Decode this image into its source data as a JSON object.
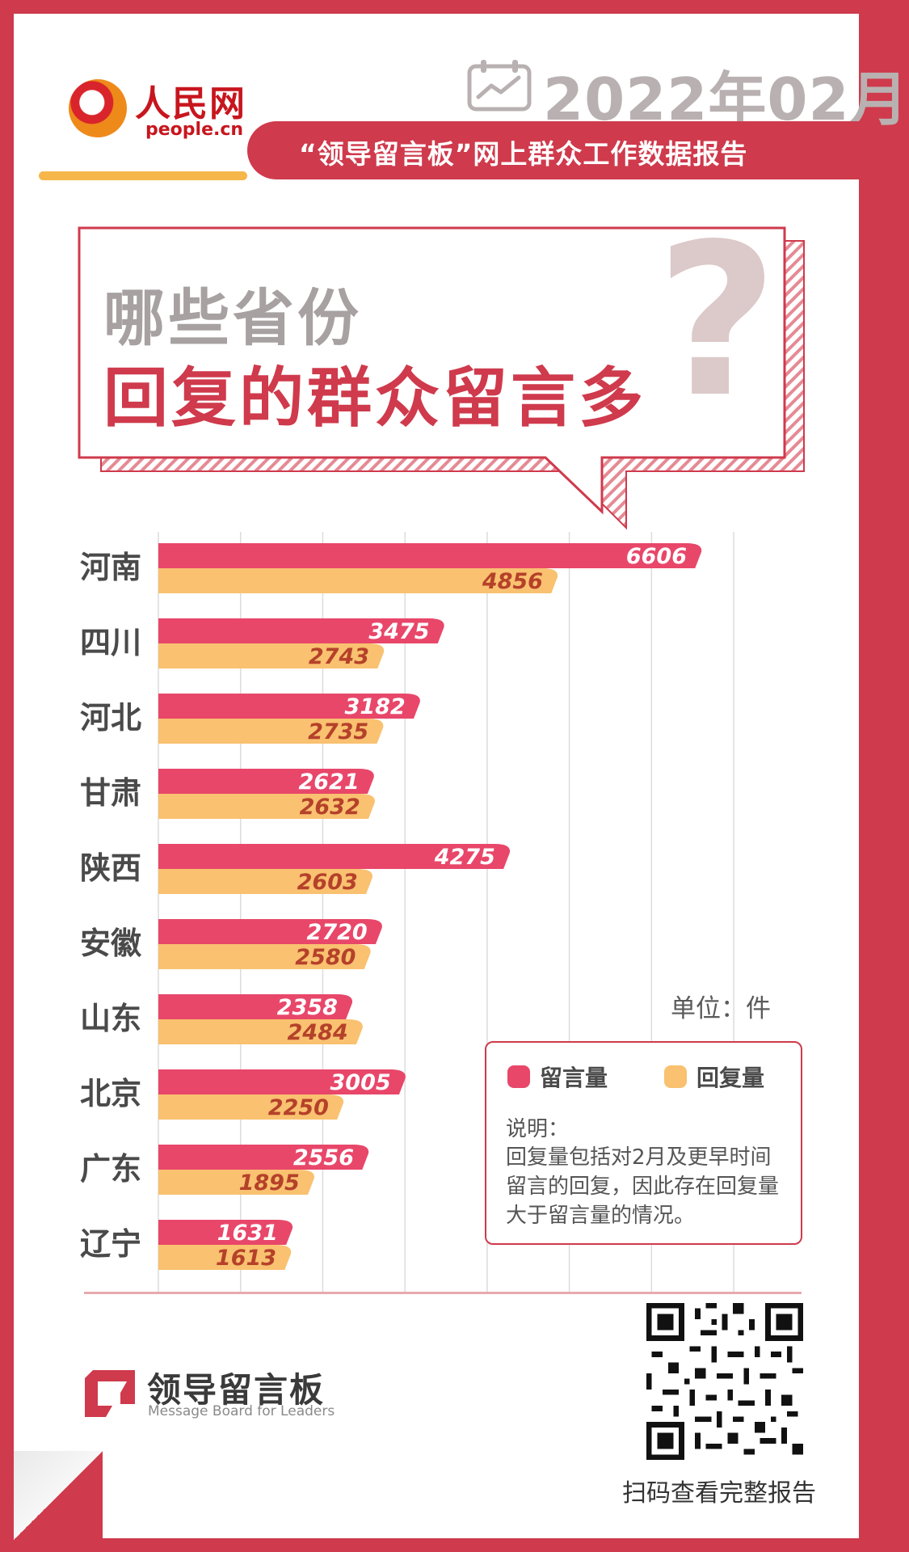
{
  "header": {
    "logo_cn": "人民网",
    "logo_en": "people.cn",
    "date": "2022年02月",
    "report_title": "“领导留言板”网上群众工作数据报告"
  },
  "headline": {
    "line1": "哪些省份",
    "line2": "回复的群众留言多",
    "mark": "?"
  },
  "chart_data": {
    "type": "bar",
    "orientation": "horizontal",
    "categories": [
      "河南",
      "四川",
      "河北",
      "甘肃",
      "陕西",
      "安徽",
      "山东",
      "北京",
      "广东",
      "辽宁"
    ],
    "series": [
      {
        "name": "留言量",
        "color": "#e8476a",
        "values": [
          6606,
          3475,
          3182,
          2621,
          4275,
          2720,
          2358,
          3005,
          2556,
          1631
        ]
      },
      {
        "name": "回复量",
        "color": "#f9c170",
        "values": [
          4856,
          2743,
          2735,
          2632,
          2603,
          2580,
          2484,
          2250,
          1895,
          1613
        ]
      }
    ],
    "xlim": [
      0,
      7000
    ],
    "grid": true,
    "unit": "单位：件"
  },
  "legend": {
    "items": [
      {
        "label": "留言量",
        "color": "#e8476a"
      },
      {
        "label": "回复量",
        "color": "#f9c170"
      }
    ],
    "note_title": "说明：",
    "note_text": "回复量包括对2月及更早时间留言的回复，因此存在回复量大于留言量的情况。"
  },
  "footer": {
    "brand_cn": "领导留言板",
    "brand_en": "Message Board for Leaders",
    "qr_caption": "扫码查看完整报告"
  }
}
